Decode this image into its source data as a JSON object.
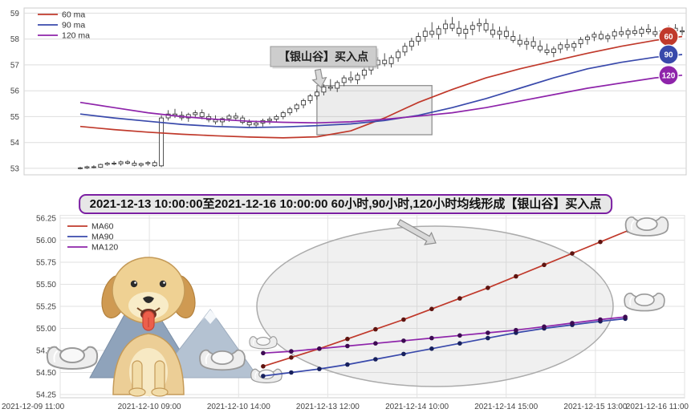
{
  "accent_colors": {
    "ma60": "#c0392b",
    "ma90": "#3949ab",
    "ma120": "#8e24aa",
    "banner_border": "#7b1fa2",
    "grid": "#e2e2e2",
    "candle_outline": "#3a3a3a"
  },
  "banner": {
    "text": "2021-12-13 10:00:00至2021-12-16 10:00:00 60小时,90小时,120小时均线形成【银山谷】买入点"
  },
  "chart_data": [
    {
      "type": "candlestick",
      "title": "",
      "ylabel": "",
      "ylim": [
        52.75,
        59.2
      ],
      "y_ticks": [
        53,
        54,
        55,
        56,
        57,
        58,
        59
      ],
      "legend": [
        {
          "label": "60 ma",
          "color": "#c0392b"
        },
        {
          "label": "90 ma",
          "color": "#3949ab"
        },
        {
          "label": "120 ma",
          "color": "#8e24aa"
        }
      ],
      "badges": [
        {
          "label": "60",
          "color": "#c0392b",
          "value": 58.1
        },
        {
          "label": "90",
          "color": "#3949ab",
          "value": 57.4
        },
        {
          "label": "120",
          "color": "#8e24aa",
          "value": 56.6
        }
      ],
      "annotation": {
        "text": "【银山谷】买入点"
      },
      "highlight_rect": {
        "i0": 35,
        "i1": 52,
        "v0": 54.3,
        "v1": 56.2
      },
      "candles": [
        [
          53.0,
          53.06,
          52.96,
          53.02
        ],
        [
          53.02,
          53.1,
          52.98,
          53.06
        ],
        [
          53.06,
          53.12,
          53.0,
          53.04
        ],
        [
          53.04,
          53.18,
          53.02,
          53.15
        ],
        [
          53.15,
          53.25,
          53.1,
          53.2
        ],
        [
          53.2,
          53.28,
          53.12,
          53.18
        ],
        [
          53.18,
          53.3,
          53.1,
          53.25
        ],
        [
          53.25,
          53.32,
          53.15,
          53.2
        ],
        [
          53.2,
          53.3,
          53.08,
          53.12
        ],
        [
          53.12,
          53.22,
          53.05,
          53.18
        ],
        [
          53.18,
          53.28,
          53.1,
          53.22
        ],
        [
          53.22,
          53.3,
          53.06,
          53.1
        ],
        [
          53.1,
          55.05,
          53.05,
          54.95
        ],
        [
          54.95,
          55.25,
          54.85,
          55.1
        ],
        [
          55.1,
          55.3,
          54.95,
          55.05
        ],
        [
          55.05,
          55.2,
          54.85,
          54.95
        ],
        [
          54.95,
          55.15,
          54.8,
          55.08
        ],
        [
          55.08,
          55.25,
          54.95,
          55.15
        ],
        [
          55.15,
          55.28,
          54.9,
          55.0
        ],
        [
          55.0,
          55.12,
          54.78,
          54.88
        ],
        [
          54.88,
          55.05,
          54.7,
          54.8
        ],
        [
          54.8,
          54.98,
          54.65,
          54.92
        ],
        [
          54.92,
          55.1,
          54.8,
          55.02
        ],
        [
          55.02,
          55.15,
          54.85,
          54.95
        ],
        [
          54.95,
          55.05,
          54.7,
          54.78
        ],
        [
          54.78,
          54.9,
          54.6,
          54.68
        ],
        [
          54.68,
          54.85,
          54.55,
          54.75
        ],
        [
          54.75,
          54.92,
          54.62,
          54.85
        ],
        [
          54.85,
          55.0,
          54.7,
          54.9
        ],
        [
          54.9,
          55.08,
          54.78,
          55.0
        ],
        [
          55.0,
          55.22,
          54.9,
          55.15
        ],
        [
          55.15,
          55.38,
          55.05,
          55.3
        ],
        [
          55.3,
          55.52,
          55.18,
          55.45
        ],
        [
          55.45,
          55.7,
          55.32,
          55.62
        ],
        [
          55.62,
          55.88,
          55.5,
          55.8
        ],
        [
          55.8,
          56.05,
          55.65,
          55.95
        ],
        [
          55.95,
          56.25,
          55.82,
          56.15
        ],
        [
          56.15,
          56.45,
          56.0,
          56.1
        ],
        [
          56.1,
          56.4,
          55.95,
          56.32
        ],
        [
          56.32,
          56.6,
          56.18,
          56.5
        ],
        [
          56.5,
          56.75,
          56.3,
          56.42
        ],
        [
          56.42,
          56.7,
          56.25,
          56.6
        ],
        [
          56.6,
          56.9,
          56.45,
          56.8
        ],
        [
          56.8,
          57.1,
          56.62,
          57.0
        ],
        [
          57.0,
          57.3,
          56.85,
          57.18
        ],
        [
          57.18,
          57.45,
          56.95,
          57.05
        ],
        [
          57.05,
          57.38,
          56.9,
          57.28
        ],
        [
          57.28,
          57.6,
          57.12,
          57.5
        ],
        [
          57.5,
          57.85,
          57.35,
          57.72
        ],
        [
          57.72,
          58.05,
          57.55,
          57.92
        ],
        [
          57.92,
          58.25,
          57.75,
          58.1
        ],
        [
          58.1,
          58.45,
          57.9,
          58.3
        ],
        [
          58.3,
          58.65,
          58.05,
          58.18
        ],
        [
          58.18,
          58.52,
          57.98,
          58.4
        ],
        [
          58.4,
          58.75,
          58.2,
          58.58
        ],
        [
          58.58,
          58.85,
          58.3,
          58.42
        ],
        [
          58.42,
          58.7,
          58.1,
          58.22
        ],
        [
          58.22,
          58.55,
          58.0,
          58.38
        ],
        [
          58.38,
          58.68,
          58.15,
          58.52
        ],
        [
          58.52,
          58.8,
          58.28,
          58.6
        ],
        [
          58.6,
          58.78,
          58.25,
          58.35
        ],
        [
          58.35,
          58.6,
          58.05,
          58.18
        ],
        [
          58.18,
          58.48,
          57.98,
          58.3
        ],
        [
          58.3,
          58.5,
          58.0,
          58.1
        ],
        [
          58.1,
          58.32,
          57.85,
          57.95
        ],
        [
          57.95,
          58.18,
          57.7,
          57.8
        ],
        [
          57.8,
          58.05,
          57.58,
          57.9
        ],
        [
          57.9,
          58.1,
          57.62,
          57.72
        ],
        [
          57.72,
          57.95,
          57.48,
          57.58
        ],
        [
          57.58,
          57.82,
          57.38,
          57.48
        ],
        [
          57.48,
          57.72,
          57.3,
          57.62
        ],
        [
          57.62,
          57.88,
          57.45,
          57.78
        ],
        [
          57.78,
          58.0,
          57.55,
          57.68
        ],
        [
          57.68,
          57.92,
          57.52,
          57.82
        ],
        [
          57.82,
          58.08,
          57.65,
          57.98
        ],
        [
          57.98,
          58.18,
          57.78,
          58.08
        ],
        [
          58.08,
          58.28,
          57.92,
          58.18
        ],
        [
          58.18,
          58.32,
          57.95,
          58.02
        ],
        [
          58.02,
          58.22,
          57.88,
          58.12
        ],
        [
          58.12,
          58.38,
          57.98,
          58.28
        ],
        [
          58.28,
          58.48,
          58.08,
          58.18
        ],
        [
          58.18,
          58.42,
          58.02,
          58.32
        ],
        [
          58.32,
          58.52,
          58.12,
          58.22
        ],
        [
          58.22,
          58.48,
          58.08,
          58.38
        ],
        [
          58.38,
          58.58,
          58.18,
          58.28
        ],
        [
          58.28,
          58.48,
          58.08,
          58.18
        ],
        [
          58.18,
          58.38,
          58.02,
          58.32
        ],
        [
          58.32,
          58.52,
          58.12,
          58.42
        ],
        [
          58.42,
          58.58,
          58.22,
          58.32
        ],
        [
          58.32,
          58.48,
          58.15,
          58.28
        ]
      ],
      "ma": [
        {
          "name": "60 ma",
          "color": "#c0392b",
          "idx": [
            0,
            5,
            10,
            15,
            20,
            25,
            30,
            35,
            40,
            45,
            50,
            55,
            60,
            65,
            70,
            75,
            80,
            85,
            89
          ],
          "values": [
            54.62,
            54.5,
            54.4,
            54.32,
            54.26,
            54.21,
            54.18,
            54.22,
            54.45,
            54.95,
            55.55,
            56.05,
            56.5,
            56.85,
            57.15,
            57.45,
            57.72,
            57.95,
            58.1
          ]
        },
        {
          "name": "90 ma",
          "color": "#3949ab",
          "idx": [
            0,
            5,
            10,
            15,
            20,
            25,
            30,
            35,
            40,
            45,
            50,
            55,
            60,
            65,
            70,
            75,
            80,
            85,
            89
          ],
          "values": [
            55.1,
            54.95,
            54.82,
            54.7,
            54.62,
            54.58,
            54.6,
            54.65,
            54.72,
            54.85,
            55.05,
            55.35,
            55.7,
            56.1,
            56.5,
            56.85,
            57.1,
            57.3,
            57.4
          ]
        },
        {
          "name": "120 ma",
          "color": "#8e24aa",
          "idx": [
            0,
            5,
            10,
            15,
            20,
            25,
            30,
            35,
            40,
            45,
            50,
            55,
            60,
            65,
            70,
            75,
            80,
            85,
            89
          ],
          "values": [
            55.55,
            55.35,
            55.15,
            55.0,
            54.9,
            54.82,
            54.78,
            54.76,
            54.8,
            54.9,
            55.02,
            55.15,
            55.35,
            55.6,
            55.85,
            56.1,
            56.3,
            56.5,
            56.6
          ]
        }
      ]
    },
    {
      "type": "line",
      "title": "",
      "ylim": [
        54.25,
        56.25
      ],
      "y_ticks": [
        "54.25",
        "54.50",
        "54.75",
        "55.00",
        "55.25",
        "55.50",
        "55.75",
        "56.00",
        "56.25"
      ],
      "x_ticks": [
        "2021-12-09 11:00",
        "2021-12-10 09:00",
        "2021-12-10 14:00",
        "2021-12-13 12:00",
        "2021-12-14 10:00",
        "2021-12-14 15:00",
        "2021-12-15 13:00",
        "2021-12-16 11:00"
      ],
      "legend": [
        {
          "label": "MA60",
          "color": "#c0392b"
        },
        {
          "label": "MA90",
          "color": "#3949ab"
        },
        {
          "label": "MA120",
          "color": "#8e24aa"
        }
      ],
      "series": [
        {
          "name": "MA60",
          "color": "#c0392b",
          "dot_color": "#5e1410",
          "points": [
            [
              0.325,
              54.57
            ],
            [
              0.37,
              54.67
            ],
            [
              0.415,
              54.77
            ],
            [
              0.46,
              54.88
            ],
            [
              0.505,
              54.99
            ],
            [
              0.55,
              55.1
            ],
            [
              0.595,
              55.22
            ],
            [
              0.64,
              55.34
            ],
            [
              0.685,
              55.46
            ],
            [
              0.73,
              55.59
            ],
            [
              0.775,
              55.72
            ],
            [
              0.82,
              55.85
            ],
            [
              0.865,
              55.98
            ],
            [
              0.91,
              56.11
            ]
          ]
        },
        {
          "name": "MA90",
          "color": "#3949ab",
          "dot_color": "#17205c",
          "points": [
            [
              0.325,
              54.46
            ],
            [
              0.37,
              54.5
            ],
            [
              0.415,
              54.54
            ],
            [
              0.46,
              54.59
            ],
            [
              0.505,
              54.65
            ],
            [
              0.55,
              54.71
            ],
            [
              0.595,
              54.77
            ],
            [
              0.64,
              54.83
            ],
            [
              0.685,
              54.89
            ],
            [
              0.73,
              54.95
            ],
            [
              0.775,
              55.0
            ],
            [
              0.82,
              55.04
            ],
            [
              0.865,
              55.08
            ],
            [
              0.905,
              55.11
            ]
          ]
        },
        {
          "name": "MA120",
          "color": "#8e24aa",
          "dot_color": "#3c0a52",
          "points": [
            [
              0.325,
              54.72
            ],
            [
              0.37,
              54.74
            ],
            [
              0.415,
              54.77
            ],
            [
              0.46,
              54.8
            ],
            [
              0.505,
              54.83
            ],
            [
              0.55,
              54.86
            ],
            [
              0.595,
              54.89
            ],
            [
              0.64,
              54.92
            ],
            [
              0.685,
              54.95
            ],
            [
              0.73,
              54.98
            ],
            [
              0.775,
              55.02
            ],
            [
              0.82,
              55.06
            ],
            [
              0.865,
              55.1
            ],
            [
              0.905,
              55.13
            ]
          ]
        }
      ]
    }
  ],
  "illustrations": {
    "highlight_ellipse": "silver-valley-zone",
    "dog": "golden-retriever-cartoon",
    "mountains": "snow-capped-mountains",
    "ingots": [
      "bottom-left-ingot",
      "right-of-dog-ingot",
      "line-start-upper-ingot",
      "line-start-lower-ingot",
      "line-end-top-ingot",
      "line-end-right-ingot"
    ],
    "arrows": [
      "annotation-to-rect-arrow",
      "banner-to-ellipse-arrow"
    ]
  }
}
